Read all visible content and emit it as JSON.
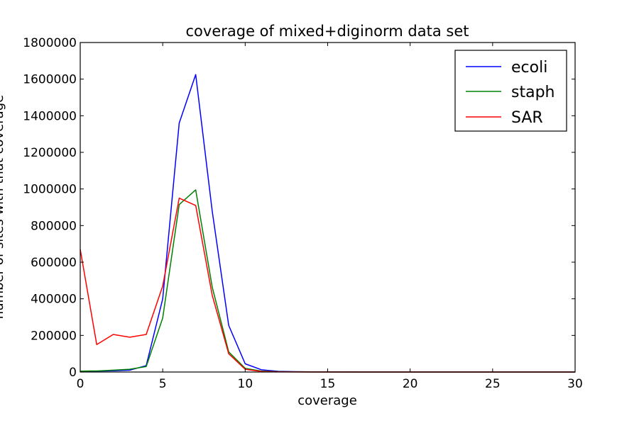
{
  "chart_data": {
    "type": "line",
    "title": "coverage of mixed+diginorm data set",
    "xlabel": "coverage",
    "ylabel": "number of sites with that coverage",
    "xlim": [
      0,
      30
    ],
    "ylim": [
      0,
      1800000
    ],
    "xticks": [
      "0",
      "5",
      "10",
      "15",
      "20",
      "25",
      "30"
    ],
    "yticks": [
      "0",
      "200000",
      "400000",
      "600000",
      "800000",
      "1000000",
      "1200000",
      "1400000",
      "1600000",
      "1800000"
    ],
    "grid": false,
    "legend_position": "top-right",
    "x": [
      0,
      1,
      2,
      3,
      4,
      5,
      6,
      7,
      8,
      9,
      10,
      11,
      12,
      13,
      14,
      15,
      16,
      17,
      18,
      19,
      20,
      21,
      22,
      23,
      24,
      25,
      26,
      27,
      28,
      29,
      30
    ],
    "series": [
      {
        "name": "ecoli",
        "color": "#0000ff",
        "values": [
          5000,
          5000,
          7000,
          10000,
          35000,
          400000,
          1360000,
          1625000,
          880000,
          255000,
          45000,
          12000,
          4000,
          2000,
          1000,
          500,
          300,
          200,
          100,
          100,
          50,
          50,
          0,
          0,
          0,
          0,
          0,
          0,
          0,
          0,
          0
        ]
      },
      {
        "name": "staph",
        "color": "#008000",
        "values": [
          5000,
          6000,
          10000,
          15000,
          30000,
          295000,
          915000,
          995000,
          465000,
          110000,
          20000,
          5000,
          2000,
          1000,
          500,
          300,
          200,
          100,
          50,
          0,
          0,
          0,
          0,
          0,
          0,
          0,
          0,
          0,
          0,
          0,
          0
        ]
      },
      {
        "name": "SAR",
        "color": "#ff0000",
        "values": [
          670000,
          150000,
          205000,
          190000,
          205000,
          470000,
          950000,
          910000,
          420000,
          100000,
          15000,
          3000,
          1000,
          500,
          200,
          100,
          50,
          0,
          0,
          0,
          0,
          0,
          0,
          0,
          0,
          0,
          0,
          0,
          0,
          0,
          0
        ]
      }
    ]
  }
}
